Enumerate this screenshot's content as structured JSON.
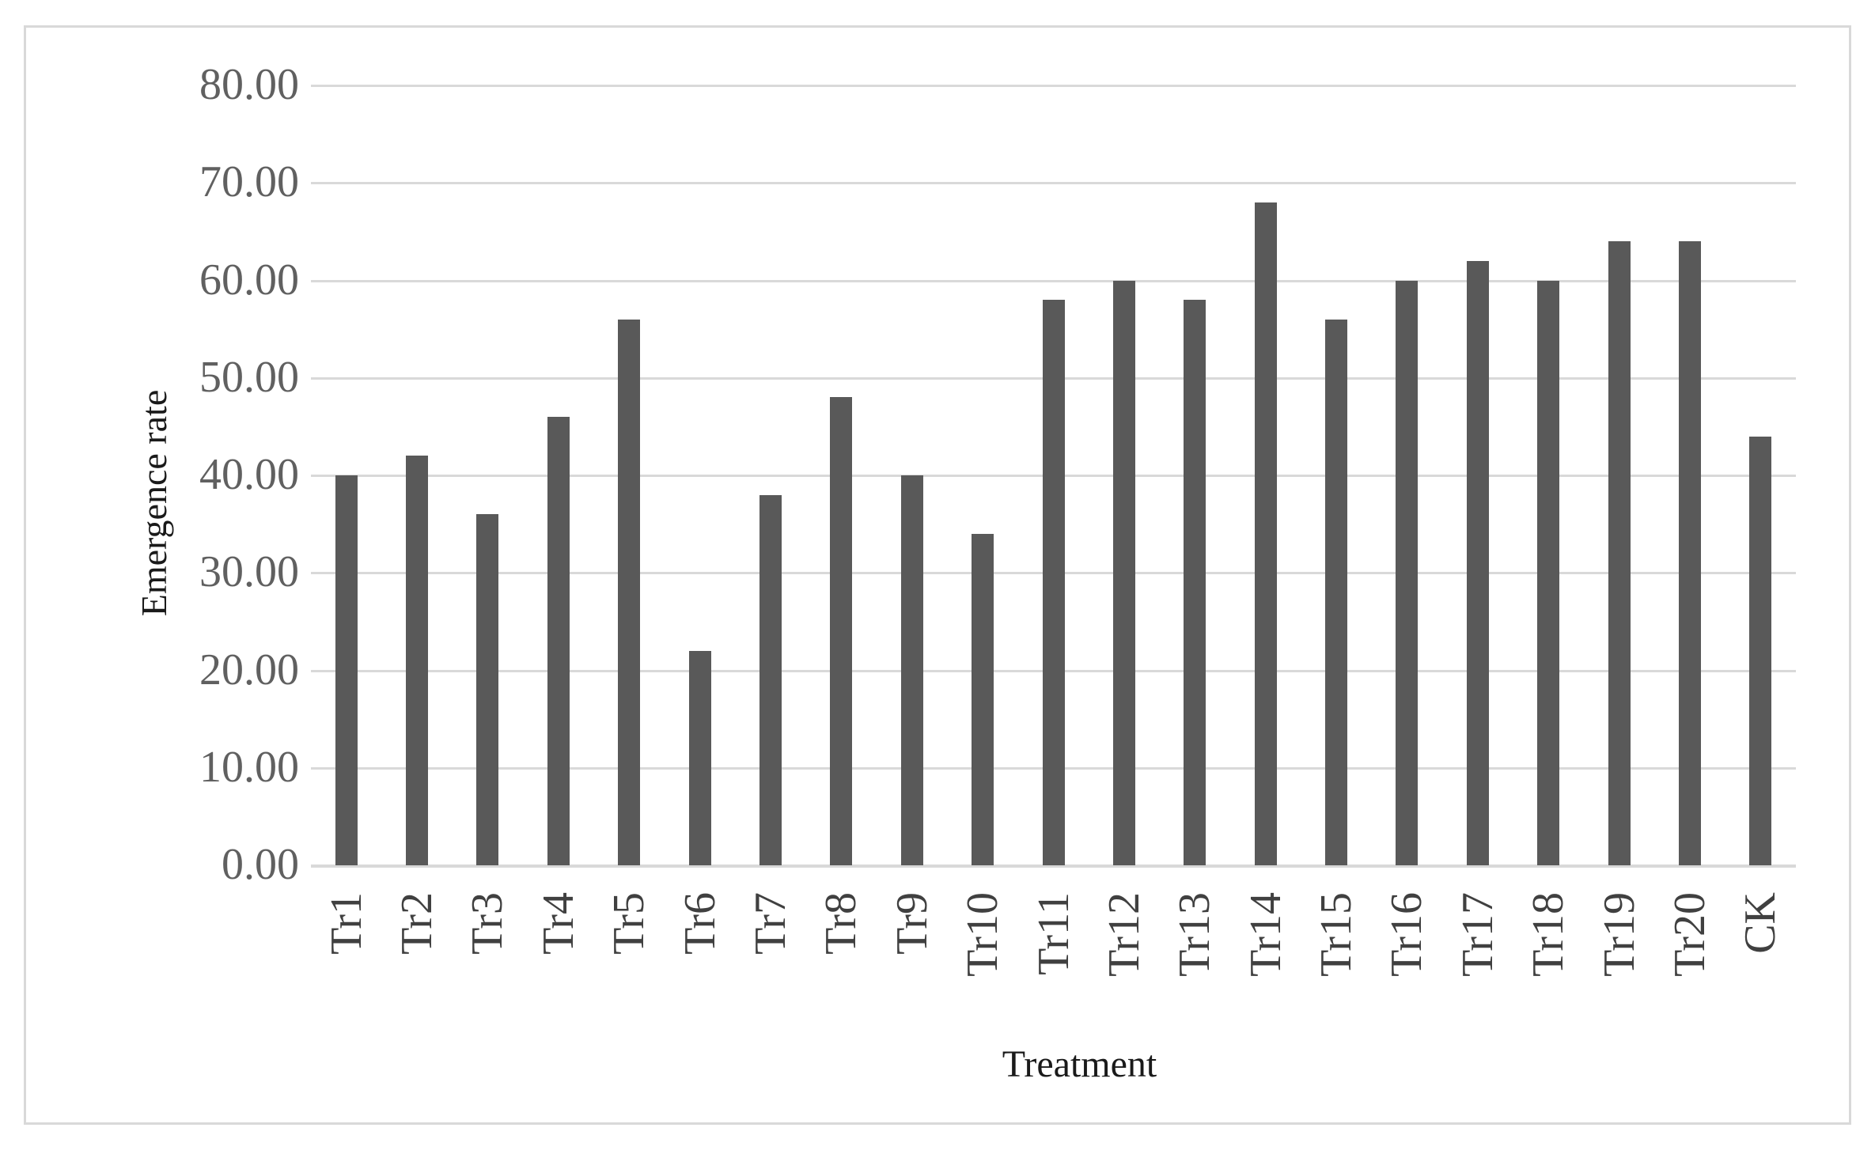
{
  "figure": {
    "background": "#ffffff",
    "border_color": "#d9d9d9"
  },
  "chart_data": {
    "type": "bar",
    "title": "",
    "categories": [
      "Tr1",
      "Tr2",
      "Tr3",
      "Tr4",
      "Tr5",
      "Tr6",
      "Tr7",
      "Tr8",
      "Tr9",
      "Tr10",
      "Tr11",
      "Tr12",
      "Tr13",
      "Tr14",
      "Tr15",
      "Tr16",
      "Tr17",
      "Tr18",
      "Tr19",
      "Tr20",
      "CK"
    ],
    "values": [
      40,
      42,
      36,
      46,
      56,
      22,
      38,
      48,
      40,
      34,
      58,
      60,
      58,
      68,
      56,
      60,
      62,
      60,
      64,
      64,
      44
    ],
    "xlabel": "Treatment",
    "ylabel": "Emergence rate",
    "ylim": [
      0,
      80
    ],
    "ytick_step": 10,
    "ytick_labels": [
      "0.00",
      "10.00",
      "20.00",
      "30.00",
      "40.00",
      "50.00",
      "60.00",
      "70.00",
      "80.00"
    ],
    "grid": "horizontal-only",
    "legend": "none",
    "bar_color": "#595959",
    "gridline_color": "#d9d9d9",
    "axis_line_color": "#d9d9d9",
    "ytick_color": "#606060",
    "xtick_color": "#404040",
    "axis_title_color": "#1a1a1a",
    "xtick_rotation_degrees": -90
  }
}
